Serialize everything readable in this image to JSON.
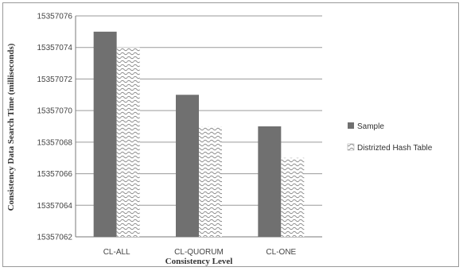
{
  "chart_data": {
    "type": "bar",
    "title": "",
    "xlabel": "Consistency Level",
    "ylabel": "Consistency Data Search Time (milliseconds)",
    "categories": [
      "CL-ALL",
      "CL-QUORUM",
      "CL-ONE"
    ],
    "series": [
      {
        "name": "Sample",
        "values": [
          15357075,
          15357071,
          15357069
        ],
        "color": "#707070",
        "pattern": "solid"
      },
      {
        "name": "Distrizted Hash Table",
        "values": [
          15357074,
          15357069,
          15357067
        ],
        "color": "#8a8a8a",
        "pattern": "wave"
      }
    ],
    "yticks": [
      "15357062",
      "15357064",
      "15357066",
      "15357068",
      "15357070",
      "15357072",
      "15357074",
      "15357076"
    ],
    "ylim": [
      15357062,
      15357076
    ],
    "grid": true,
    "legend_position": "right"
  }
}
